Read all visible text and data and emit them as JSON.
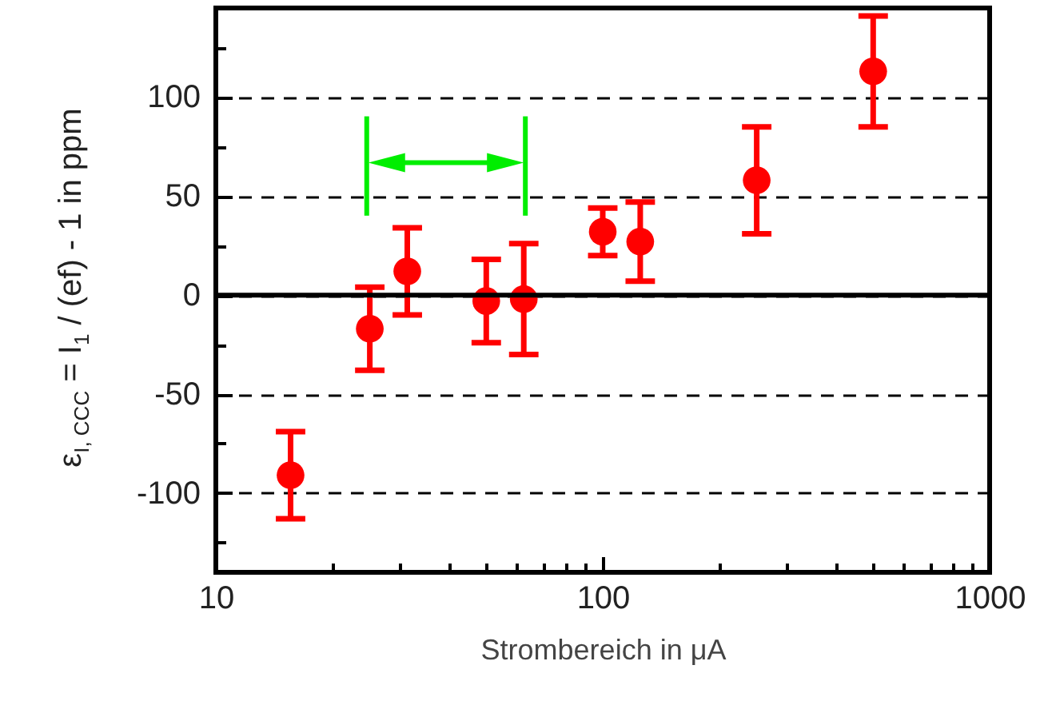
{
  "chart_data": {
    "type": "scatter",
    "xlabel": "Strombereich in μA",
    "ylabel": "ε$_{I, CCC}$ = I$_{1}$ / (ef) - 1 in ppm",
    "x": [
      15.6,
      25,
      31.25,
      50,
      62.5,
      100,
      125,
      250,
      500
    ],
    "series": [
      {
        "color": "#ff0000",
        "values": [
          -91,
          -17,
          12,
          -3,
          -2,
          32,
          27,
          58,
          113
        ],
        "errors": [
          22,
          21,
          22,
          21,
          28,
          12,
          20,
          27,
          28
        ]
      }
    ],
    "log": "x",
    "xlim": [
      10,
      1000
    ],
    "xticks": [
      10,
      {
        "value": 20,
        "label": null
      },
      {
        "value": 30,
        "label": null
      },
      {
        "value": 40,
        "label": null
      },
      {
        "value": 50,
        "label": null
      },
      {
        "value": 60,
        "label": null
      },
      {
        "value": 70,
        "label": null
      },
      {
        "value": 80,
        "label": null
      },
      {
        "value": 90,
        "label": null
      },
      100,
      {
        "value": 200,
        "label": null
      },
      {
        "value": 300,
        "label": null
      },
      {
        "value": 400,
        "label": null
      },
      {
        "value": 500,
        "label": null
      },
      {
        "value": 600,
        "label": null
      },
      {
        "value": 700,
        "label": null
      },
      {
        "value": 800,
        "label": null
      },
      {
        "value": 900,
        "label": null
      },
      1000
    ],
    "ylim": [
      -140,
      145
    ],
    "yticks": [
      {
        "value": -125,
        "label": null
      },
      -100,
      {
        "value": -75,
        "label": null
      },
      -50,
      {
        "value": -25,
        "label": null
      },
      0,
      {
        "value": 25,
        "label": null
      },
      50,
      {
        "value": 75,
        "label": null
      },
      100,
      {
        "value": 125,
        "label": null
      }
    ],
    "grid": "y",
    "ref_lines": [
      {
        "axis": "y",
        "value": 0,
        "color": "#000000"
      }
    ],
    "marker": "circle"
  }
}
